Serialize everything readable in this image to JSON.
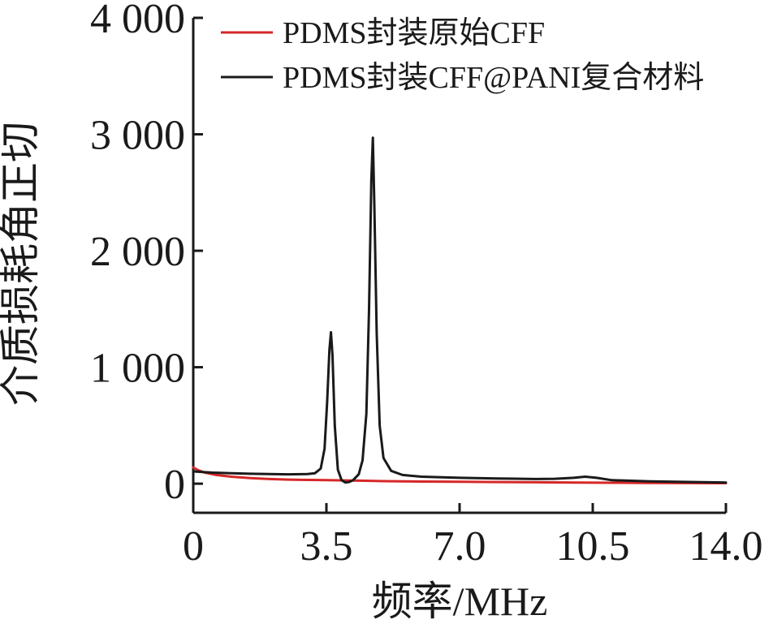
{
  "chart_data": {
    "type": "line",
    "xlabel": "频率/MHz",
    "ylabel": "介质损耗角正切",
    "xlim": [
      0,
      14.0
    ],
    "ylim": [
      -250,
      4000
    ],
    "xticks": [
      0,
      3.5,
      7.0,
      10.5,
      14.0
    ],
    "xtick_labels": [
      "0",
      "3.5",
      "7.0",
      "10.5",
      "14.0"
    ],
    "yticks": [
      0,
      1000,
      2000,
      3000,
      4000
    ],
    "ytick_labels": [
      "0",
      "1 000",
      "2 000",
      "3 000",
      "4 000"
    ],
    "legend_position": "top-right",
    "grid": false,
    "series": [
      {
        "name": "PDMS封装原始CFF",
        "color": "#d62728",
        "points": [
          [
            0,
            140
          ],
          [
            0.1,
            120
          ],
          [
            0.3,
            95
          ],
          [
            0.6,
            75
          ],
          [
            1.0,
            60
          ],
          [
            1.5,
            48
          ],
          [
            2.0,
            40
          ],
          [
            2.5,
            35
          ],
          [
            3.0,
            32
          ],
          [
            3.5,
            30
          ],
          [
            4.0,
            28
          ],
          [
            4.5,
            25
          ],
          [
            5.0,
            22
          ],
          [
            5.5,
            20
          ],
          [
            6.0,
            18
          ],
          [
            7.0,
            16
          ],
          [
            8.0,
            14
          ],
          [
            9.0,
            12
          ],
          [
            10.0,
            10
          ],
          [
            11.0,
            8
          ],
          [
            12.0,
            6
          ],
          [
            13.0,
            5
          ],
          [
            14.0,
            4
          ]
        ]
      },
      {
        "name": "PDMS封装CFF@PANI复合材料",
        "color": "#1a1a1a",
        "points": [
          [
            0,
            105
          ],
          [
            0.5,
            95
          ],
          [
            1.0,
            90
          ],
          [
            1.5,
            85
          ],
          [
            2.0,
            82
          ],
          [
            2.5,
            80
          ],
          [
            3.0,
            82
          ],
          [
            3.2,
            90
          ],
          [
            3.35,
            130
          ],
          [
            3.45,
            300
          ],
          [
            3.52,
            700
          ],
          [
            3.58,
            1150
          ],
          [
            3.62,
            1300
          ],
          [
            3.66,
            1100
          ],
          [
            3.72,
            500
          ],
          [
            3.8,
            120
          ],
          [
            3.9,
            30
          ],
          [
            4.0,
            10
          ],
          [
            4.1,
            15
          ],
          [
            4.2,
            30
          ],
          [
            4.35,
            80
          ],
          [
            4.45,
            200
          ],
          [
            4.55,
            600
          ],
          [
            4.62,
            1500
          ],
          [
            4.68,
            2600
          ],
          [
            4.72,
            2970
          ],
          [
            4.76,
            2400
          ],
          [
            4.82,
            1300
          ],
          [
            4.9,
            500
          ],
          [
            5.0,
            220
          ],
          [
            5.2,
            110
          ],
          [
            5.5,
            75
          ],
          [
            6.0,
            60
          ],
          [
            7.0,
            50
          ],
          [
            8.0,
            45
          ],
          [
            9.0,
            40
          ],
          [
            9.5,
            42
          ],
          [
            10.0,
            50
          ],
          [
            10.3,
            60
          ],
          [
            10.6,
            50
          ],
          [
            11.0,
            30
          ],
          [
            12.0,
            20
          ],
          [
            13.0,
            15
          ],
          [
            14.0,
            10
          ]
        ]
      }
    ]
  }
}
